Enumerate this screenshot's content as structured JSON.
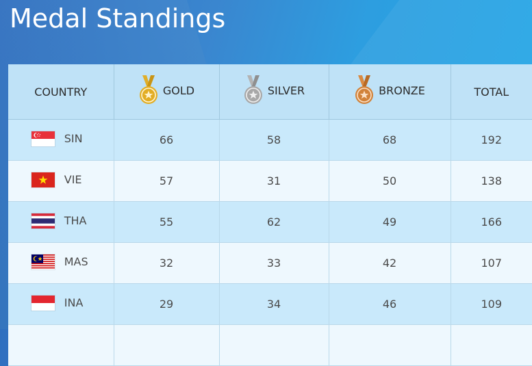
{
  "page": {
    "title": "Medal Standings"
  },
  "table": {
    "headers": {
      "country": "COUNTRY",
      "gold": "GOLD",
      "silver": "SILVER",
      "bronze": "BRONZE",
      "total": "TOTAL"
    },
    "medal_colors": {
      "gold": "#d9a520",
      "silver": "#a9a9a9",
      "bronze": "#d0813a"
    },
    "icons": {
      "gold": "gold-medal-icon",
      "silver": "silver-medal-icon",
      "bronze": "bronze-medal-icon"
    },
    "rows": [
      {
        "code": "SIN",
        "flag": "singapore-flag-icon",
        "gold": "66",
        "silver": "58",
        "bronze": "68",
        "total": "192"
      },
      {
        "code": "VIE",
        "flag": "vietnam-flag-icon",
        "gold": "57",
        "silver": "31",
        "bronze": "50",
        "total": "138"
      },
      {
        "code": "THA",
        "flag": "thailand-flag-icon",
        "gold": "55",
        "silver": "62",
        "bronze": "49",
        "total": "166"
      },
      {
        "code": "MAS",
        "flag": "malaysia-flag-icon",
        "gold": "32",
        "silver": "33",
        "bronze": "42",
        "total": "107"
      },
      {
        "code": "INA",
        "flag": "indonesia-flag-icon",
        "gold": "29",
        "silver": "34",
        "bronze": "46",
        "total": "109"
      },
      {
        "code": "",
        "flag": "",
        "gold": "",
        "silver": "",
        "bronze": "",
        "total": ""
      }
    ]
  }
}
